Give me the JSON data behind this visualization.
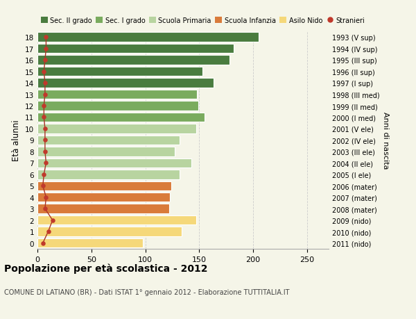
{
  "ages": [
    18,
    17,
    16,
    15,
    14,
    13,
    12,
    11,
    10,
    9,
    8,
    7,
    6,
    5,
    4,
    3,
    2,
    1,
    0
  ],
  "bar_values": [
    205,
    182,
    178,
    153,
    163,
    148,
    149,
    155,
    147,
    132,
    127,
    143,
    132,
    124,
    123,
    122,
    147,
    134,
    98
  ],
  "bar_colors": [
    "#4a7c3f",
    "#4a7c3f",
    "#4a7c3f",
    "#4a7c3f",
    "#4a7c3f",
    "#7aab5e",
    "#7aab5e",
    "#7aab5e",
    "#b8d4a0",
    "#b8d4a0",
    "#b8d4a0",
    "#b8d4a0",
    "#b8d4a0",
    "#d97b3a",
    "#d97b3a",
    "#d97b3a",
    "#f5d87a",
    "#f5d87a",
    "#f5d87a"
  ],
  "stranieri_values": [
    8,
    8,
    7,
    6,
    7,
    7,
    6,
    6,
    7,
    7,
    7,
    8,
    6,
    5,
    8,
    7,
    14,
    10,
    5
  ],
  "right_labels": [
    "1993 (V sup)",
    "1994 (IV sup)",
    "1995 (III sup)",
    "1996 (II sup)",
    "1997 (I sup)",
    "1998 (III med)",
    "1999 (II med)",
    "2000 (I med)",
    "2001 (V ele)",
    "2002 (IV ele)",
    "2003 (III ele)",
    "2004 (II ele)",
    "2005 (I ele)",
    "2006 (mater)",
    "2007 (mater)",
    "2008 (mater)",
    "2009 (nido)",
    "2010 (nido)",
    "2011 (nido)"
  ],
  "legend_labels": [
    "Sec. II grado",
    "Sec. I grado",
    "Scuola Primaria",
    "Scuola Infanzia",
    "Asilo Nido",
    "Stranieri"
  ],
  "legend_colors": [
    "#4a7c3f",
    "#7aab5e",
    "#b8d4a0",
    "#d97b3a",
    "#f5d87a",
    "#c0392b"
  ],
  "ylabel": "Età alunni",
  "right_ylabel": "Anni di nascita",
  "title": "Popolazione per età scolastica - 2012",
  "subtitle": "COMUNE DI LATIANO (BR) - Dati ISTAT 1° gennaio 2012 - Elaborazione TUTTITALIA.IT",
  "xlim": [
    0,
    270
  ],
  "xticks": [
    0,
    50,
    100,
    150,
    200,
    250
  ],
  "bar_height": 0.82,
  "bg_color": "#f5f5e8",
  "grid_color": "#cccccc",
  "stranieri_color": "#c0392b",
  "stranieri_line_color": "#a93226"
}
